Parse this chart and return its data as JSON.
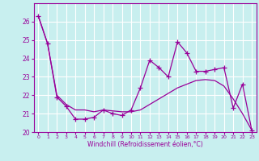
{
  "xlabel": "Windchill (Refroidissement éolien,°C)",
  "xlim": [
    -0.5,
    23.5
  ],
  "ylim": [
    20,
    27
  ],
  "yticks": [
    20,
    21,
    22,
    23,
    24,
    25,
    26
  ],
  "xticks": [
    0,
    1,
    2,
    3,
    4,
    5,
    6,
    7,
    8,
    9,
    10,
    11,
    12,
    13,
    14,
    15,
    16,
    17,
    18,
    19,
    20,
    21,
    22,
    23
  ],
  "bg_color": "#c8efef",
  "line_color": "#990099",
  "grid_color": "#ffffff",
  "zigzag_x": [
    0,
    1,
    2,
    3,
    4,
    5,
    6,
    7,
    8,
    9,
    10,
    11,
    12,
    13,
    14,
    15,
    16,
    17,
    18,
    19,
    20,
    21,
    22,
    23
  ],
  "zigzag_y": [
    26.3,
    24.8,
    21.9,
    21.4,
    20.7,
    20.7,
    20.8,
    21.2,
    21.0,
    20.9,
    21.2,
    22.4,
    23.9,
    23.5,
    23.0,
    24.9,
    24.3,
    23.3,
    23.3,
    23.4,
    23.5,
    21.3,
    22.6,
    20.1
  ],
  "smooth_x": [
    0,
    1,
    2,
    3,
    4,
    5,
    6,
    7,
    8,
    9,
    10,
    11,
    12,
    13,
    14,
    15,
    16,
    17,
    18,
    19,
    20,
    21,
    22,
    23
  ],
  "smooth_y": [
    26.3,
    24.8,
    22.0,
    21.5,
    21.2,
    21.2,
    21.1,
    21.2,
    21.15,
    21.1,
    21.1,
    21.2,
    21.5,
    21.8,
    22.1,
    22.4,
    22.6,
    22.8,
    22.85,
    22.8,
    22.5,
    21.8,
    21.0,
    20.1
  ]
}
